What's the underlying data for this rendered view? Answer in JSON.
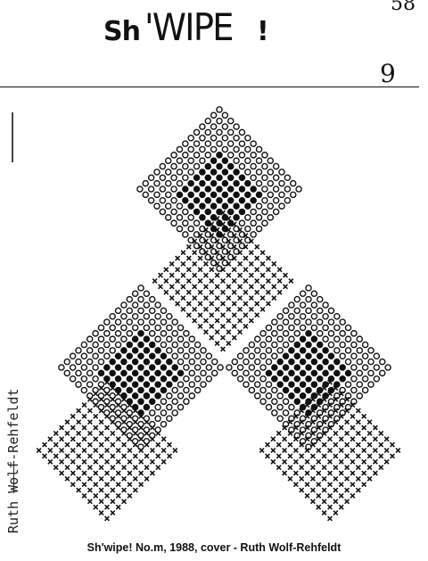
{
  "header": {
    "logo_sh": "Sh",
    "logo_apostrophe_wipe": "'WIPE",
    "logo_bang": "!",
    "page_number": "58",
    "issue_number": "9"
  },
  "side_signature": {
    "first": "Ruth ",
    "struck": "Wolf",
    "last": "-Rehfeldt"
  },
  "caption": "Sh'wipe! No.m, 1988, cover - Ruth Wolf-Rehfeldt",
  "colors": {
    "ink": "#111111",
    "paper": "#ffffff"
  }
}
